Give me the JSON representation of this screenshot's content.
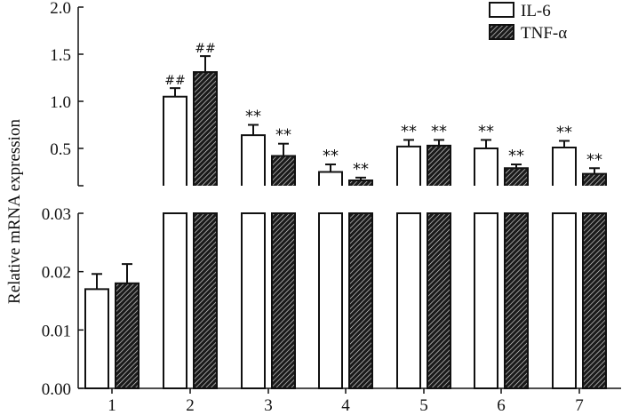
{
  "chart_data": {
    "type": "bar",
    "title": "",
    "xlabel": "",
    "ylabel": "Relative mRNA expression",
    "categories": [
      "1",
      "2",
      "3",
      "4",
      "5",
      "6",
      "7"
    ],
    "axis_break": true,
    "upper_axis": {
      "ylim": [
        0.1,
        2.0
      ],
      "ticks": [
        "0.5",
        "1.0",
        "1.5",
        "2.0"
      ],
      "tick_values": [
        0.5,
        1.0,
        1.5,
        2.0
      ]
    },
    "lower_axis": {
      "ylim": [
        0,
        0.03
      ],
      "ticks": [
        "0.00",
        "0.01",
        "0.02",
        "0.03"
      ],
      "tick_values": [
        0,
        0.01,
        0.02,
        0.03
      ]
    },
    "legend": {
      "placement": "top-right",
      "entries": [
        "IL-6",
        "TNF-α"
      ]
    },
    "series": [
      {
        "name": "IL-6",
        "pattern": "open",
        "values": [
          0.017,
          1.05,
          0.64,
          0.25,
          0.52,
          0.5,
          0.51
        ],
        "errors": [
          0.0026,
          0.09,
          0.11,
          0.08,
          0.07,
          0.09,
          0.07
        ],
        "annotations": [
          "",
          "##",
          "**",
          "**",
          "**",
          "**",
          "**"
        ]
      },
      {
        "name": "TNF-α",
        "pattern": "hatched",
        "values": [
          0.018,
          1.31,
          0.42,
          0.16,
          0.53,
          0.29,
          0.23
        ],
        "errors": [
          0.0033,
          0.17,
          0.13,
          0.03,
          0.06,
          0.04,
          0.06
        ],
        "annotations": [
          "",
          "##",
          "**",
          "**",
          "**",
          "**",
          "**"
        ]
      }
    ]
  }
}
